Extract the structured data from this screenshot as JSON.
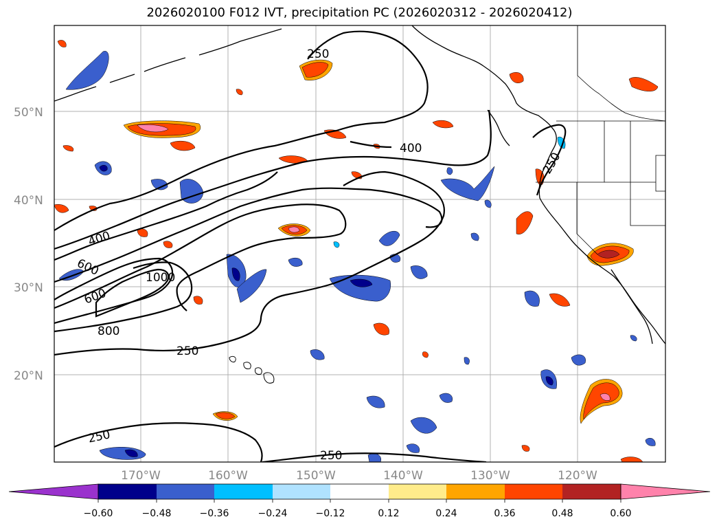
{
  "title": "2026020100 F012 IVT, precipitation PC (2026020312 - 2026020412)",
  "latitude_labels": [
    "50°N",
    "40°N",
    "30°N",
    "20°N"
  ],
  "longitude_labels": [
    "170°W",
    "160°W",
    "150°W",
    "140°W",
    "130°W",
    "120°W"
  ],
  "ivt_contour_labels": [
    "250",
    "400",
    "250",
    "400",
    "600",
    "600",
    "1000",
    "800",
    "250",
    "250",
    "250"
  ],
  "colorbar": {
    "tick_labels": [
      "−0.60",
      "−0.48",
      "−0.36",
      "−0.24",
      "−0.12",
      "0.12",
      "0.24",
      "0.36",
      "0.48",
      "0.60"
    ],
    "colors": [
      "#9a32cd",
      "#00008b",
      "#3a5fcd",
      "#00bfff",
      "#b0e2ff",
      "#ffffff",
      "#ffec8b",
      "#ffa500",
      "#ff4500",
      "#b22222",
      "#ff82ab"
    ]
  }
}
